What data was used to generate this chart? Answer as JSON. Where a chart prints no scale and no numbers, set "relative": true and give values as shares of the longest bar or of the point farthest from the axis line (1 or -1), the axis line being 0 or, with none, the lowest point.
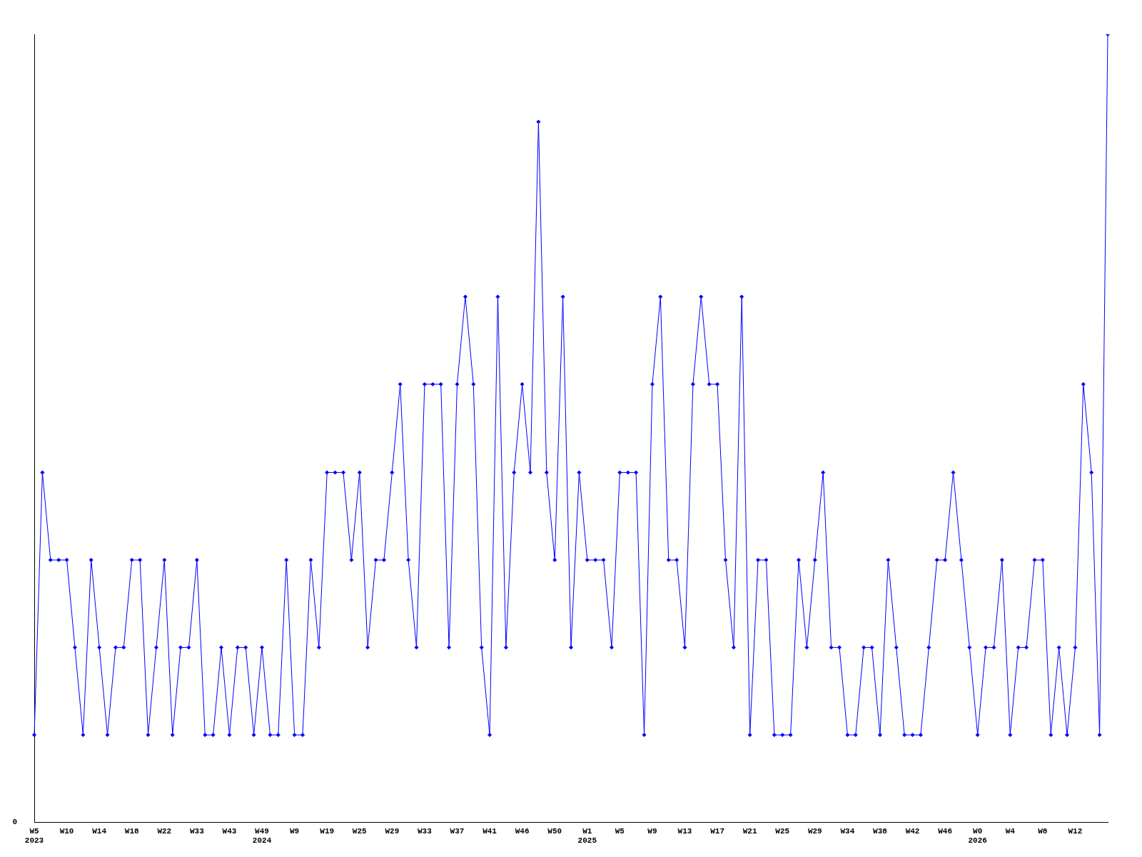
{
  "chart_data": {
    "type": "line",
    "relative": true,
    "color": "#0000ff",
    "marker": "diamond",
    "grid": false,
    "legend": false,
    "annotations": [
      "0"
    ],
    "categories": [
      "W5\n2023",
      null,
      null,
      null,
      "W10",
      null,
      null,
      null,
      "W14",
      null,
      null,
      null,
      "W18",
      null,
      null,
      null,
      "W22",
      null,
      null,
      null,
      "W33",
      null,
      null,
      null,
      "W43",
      null,
      null,
      null,
      "W49\n2024",
      null,
      null,
      null,
      "W9",
      null,
      null,
      null,
      "W19",
      null,
      null,
      null,
      "W25",
      null,
      null,
      null,
      "W29",
      null,
      null,
      null,
      "W33",
      null,
      null,
      null,
      "W37",
      null,
      null,
      null,
      "W41",
      null,
      null,
      null,
      "W46",
      null,
      null,
      null,
      "W50",
      null,
      null,
      null,
      "W1\n2025",
      null,
      null,
      null,
      "W5",
      null,
      null,
      null,
      "W9",
      null,
      null,
      null,
      "W13",
      null,
      null,
      null,
      "W17",
      null,
      null,
      null,
      "W21",
      null,
      null,
      null,
      "W25",
      null,
      null,
      null,
      "W29",
      null,
      null,
      null,
      "W34",
      null,
      null,
      null,
      "W38",
      null,
      null,
      null,
      "W42",
      null,
      null,
      null,
      "W46",
      null,
      null,
      null,
      "W0\n2026",
      null,
      null,
      null,
      "W4",
      null,
      null,
      null,
      "W8",
      null,
      null,
      null,
      "W12",
      null,
      null,
      null,
      null
    ],
    "values": [
      0.111,
      0.444,
      0.333,
      0.333,
      0.333,
      0.222,
      0.111,
      0.333,
      0.222,
      0.111,
      0.222,
      0.222,
      0.333,
      0.333,
      0.111,
      0.222,
      0.333,
      0.111,
      0.222,
      0.222,
      0.333,
      0.111,
      0.111,
      0.222,
      0.111,
      0.222,
      0.222,
      0.111,
      0.222,
      0.111,
      0.111,
      0.333,
      0.111,
      0.111,
      0.333,
      0.222,
      0.444,
      0.444,
      0.444,
      0.333,
      0.444,
      0.222,
      0.333,
      0.333,
      0.444,
      0.556,
      0.333,
      0.222,
      0.556,
      0.556,
      0.556,
      0.222,
      0.556,
      0.667,
      0.556,
      0.222,
      0.111,
      0.667,
      0.222,
      0.444,
      0.556,
      0.444,
      0.889,
      0.444,
      0.333,
      0.667,
      0.222,
      0.444,
      0.333,
      0.333,
      0.333,
      0.222,
      0.444,
      0.444,
      0.444,
      0.111,
      0.556,
      0.667,
      0.333,
      0.333,
      0.222,
      0.556,
      0.667,
      0.556,
      0.556,
      0.333,
      0.222,
      0.667,
      0.111,
      0.333,
      0.333,
      0.111,
      0.111,
      0.111,
      0.333,
      0.222,
      0.333,
      0.444,
      0.222,
      0.222,
      0.111,
      0.111,
      0.222,
      0.222,
      0.111,
      0.333,
      0.222,
      0.111,
      0.111,
      0.111,
      0.222,
      0.333,
      0.333,
      0.444,
      0.333,
      0.222,
      0.111,
      0.222,
      0.222,
      0.333,
      0.111,
      0.222,
      0.222,
      0.333,
      0.333,
      0.111,
      0.222,
      0.111,
      0.222,
      0.556,
      0.444,
      0.111,
      1
    ]
  }
}
